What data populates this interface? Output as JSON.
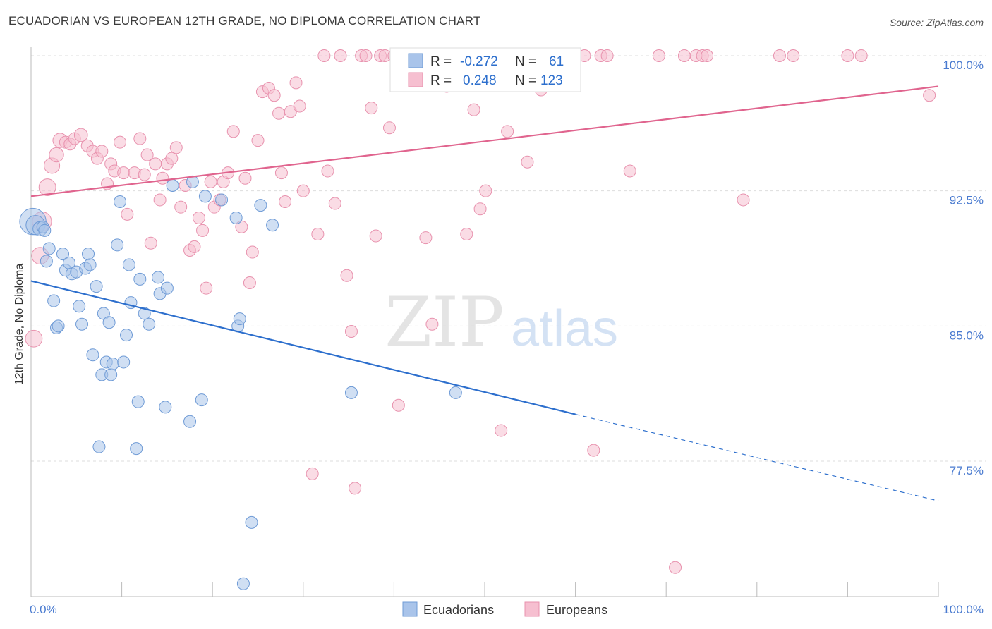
{
  "title": "ECUADORIAN VS EUROPEAN 12TH GRADE, NO DIPLOMA CORRELATION CHART",
  "source": "Source: ZipAtlas.com",
  "watermark": {
    "zip": "ZIP",
    "atlas": "atlas"
  },
  "colors": {
    "blue_fill": "#a9c4ea",
    "blue_stroke": "#6f9bd6",
    "blue_line": "#2d6fcd",
    "pink_fill": "#f6bfd0",
    "pink_stroke": "#e892ae",
    "pink_line": "#e0648e",
    "tick_text": "#4a7bd0",
    "grid": "#dddddd"
  },
  "stats_legend": [
    {
      "r_label": "R =",
      "r_value": "-0.272",
      "n_label": "N =",
      "n_value": "61"
    },
    {
      "r_label": "R =",
      "r_value": "0.248",
      "n_label": "N =",
      "n_value": "123"
    }
  ],
  "chart_data": {
    "type": "scatter",
    "xlabel": "",
    "ylabel": "12th Grade, No Diploma",
    "xlim": [
      0,
      100
    ],
    "ylim": [
      70.0,
      101.5
    ],
    "x_tick_labels": [
      "0.0%",
      "100.0%"
    ],
    "y_ticks": [
      77.5,
      85.0,
      92.5,
      100.0
    ],
    "y_tick_labels": [
      "77.5%",
      "85.0%",
      "92.5%",
      "100.0%"
    ],
    "grid": "horizontal dashed",
    "legend_position": "bottom-center",
    "series": [
      {
        "name": "Ecuadorians",
        "color": "blue",
        "trend": {
          "x0": 0,
          "y0": 87.5,
          "x1": 60,
          "y1": 80.1,
          "dashed_to_x": 100,
          "dashed_to_y": 75.3
        },
        "points": [
          [
            0.2,
            90.8,
            2.2
          ],
          [
            0.5,
            90.6,
            1.6
          ],
          [
            1.0,
            90.4,
            1.2
          ],
          [
            1.3,
            90.5,
            1
          ],
          [
            1.5,
            90.3,
            1
          ],
          [
            1.7,
            88.6,
            1
          ],
          [
            2.0,
            89.3,
            1
          ],
          [
            2.5,
            86.4,
            1
          ],
          [
            2.8,
            84.9,
            1
          ],
          [
            3.0,
            85.0,
            1
          ],
          [
            3.5,
            89.0,
            1
          ],
          [
            3.8,
            88.1,
            1
          ],
          [
            4.2,
            88.5,
            1
          ],
          [
            4.5,
            87.9,
            1
          ],
          [
            5.0,
            88.0,
            1
          ],
          [
            5.3,
            86.1,
            1
          ],
          [
            5.6,
            85.1,
            1
          ],
          [
            6.0,
            88.2,
            1
          ],
          [
            6.3,
            89.0,
            1
          ],
          [
            6.5,
            88.4,
            1
          ],
          [
            6.8,
            83.4,
            1
          ],
          [
            7.2,
            87.2,
            1
          ],
          [
            7.5,
            78.3,
            1
          ],
          [
            7.8,
            82.3,
            1
          ],
          [
            8.0,
            85.7,
            1
          ],
          [
            8.3,
            83.0,
            1
          ],
          [
            8.6,
            85.2,
            1
          ],
          [
            8.8,
            82.3,
            1
          ],
          [
            9.0,
            82.9,
            1
          ],
          [
            9.5,
            89.5,
            1
          ],
          [
            9.8,
            91.9,
            1
          ],
          [
            10.2,
            83.0,
            1
          ],
          [
            10.5,
            84.5,
            1
          ],
          [
            10.8,
            88.4,
            1
          ],
          [
            11.0,
            86.3,
            1
          ],
          [
            11.6,
            78.2,
            1
          ],
          [
            11.8,
            80.8,
            1
          ],
          [
            12.0,
            87.6,
            1
          ],
          [
            12.5,
            85.7,
            1
          ],
          [
            13.0,
            85.1,
            1
          ],
          [
            14.0,
            87.7,
            1
          ],
          [
            14.2,
            86.8,
            1
          ],
          [
            14.8,
            80.5,
            1
          ],
          [
            15.0,
            87.1,
            1
          ],
          [
            15.6,
            92.8,
            1
          ],
          [
            17.5,
            79.7,
            1
          ],
          [
            17.8,
            93.0,
            1
          ],
          [
            18.8,
            80.9,
            1
          ],
          [
            19.2,
            92.2,
            1
          ],
          [
            21.0,
            92.0,
            1
          ],
          [
            22.6,
            91.0,
            1
          ],
          [
            22.8,
            85.0,
            1
          ],
          [
            23.0,
            85.4,
            1
          ],
          [
            23.4,
            70.7,
            1
          ],
          [
            24.3,
            74.1,
            1
          ],
          [
            25.3,
            91.7,
            1
          ],
          [
            26.6,
            90.6,
            1
          ],
          [
            35.3,
            81.3,
            1
          ],
          [
            46.8,
            81.3,
            1
          ]
        ]
      },
      {
        "name": "Europeans",
        "color": "pink",
        "trend": {
          "x0": 0,
          "y0": 92.2,
          "x1": 100,
          "y1": 98.3
        },
        "points": [
          [
            0.3,
            84.3,
            1.4
          ],
          [
            1.0,
            88.9,
            1.4
          ],
          [
            1.2,
            90.8,
            1.6
          ],
          [
            1.8,
            92.7,
            1.4
          ],
          [
            2.3,
            93.9,
            1.3
          ],
          [
            2.8,
            94.5,
            1.2
          ],
          [
            3.2,
            95.3,
            1.2
          ],
          [
            3.8,
            95.2,
            1
          ],
          [
            4.3,
            95.1,
            1
          ],
          [
            4.8,
            95.4,
            1
          ],
          [
            5.5,
            95.6,
            1.1
          ],
          [
            6.2,
            95.0,
            1
          ],
          [
            6.8,
            94.7,
            1
          ],
          [
            7.3,
            94.3,
            1
          ],
          [
            7.8,
            94.7,
            1
          ],
          [
            8.4,
            92.9,
            1
          ],
          [
            8.8,
            94.0,
            1
          ],
          [
            9.2,
            93.6,
            1
          ],
          [
            9.8,
            95.2,
            1
          ],
          [
            10.2,
            93.5,
            1
          ],
          [
            10.6,
            91.2,
            1
          ],
          [
            11.4,
            93.5,
            1
          ],
          [
            12.0,
            95.4,
            1
          ],
          [
            12.5,
            93.4,
            1
          ],
          [
            12.8,
            94.5,
            1
          ],
          [
            13.2,
            89.6,
            1
          ],
          [
            13.7,
            94.0,
            1
          ],
          [
            14.2,
            92.0,
            1
          ],
          [
            14.5,
            93.2,
            1
          ],
          [
            15.0,
            94.0,
            1
          ],
          [
            15.5,
            94.3,
            1
          ],
          [
            16.0,
            94.9,
            1
          ],
          [
            16.5,
            91.6,
            1
          ],
          [
            17.0,
            92.8,
            1
          ],
          [
            17.5,
            89.2,
            1
          ],
          [
            18.0,
            89.4,
            1
          ],
          [
            18.5,
            91.0,
            1
          ],
          [
            18.9,
            90.3,
            1
          ],
          [
            19.3,
            87.1,
            1
          ],
          [
            19.8,
            93.0,
            1
          ],
          [
            20.2,
            91.6,
            1
          ],
          [
            20.8,
            92.0,
            1
          ],
          [
            21.2,
            93.0,
            1
          ],
          [
            21.7,
            93.5,
            1
          ],
          [
            22.3,
            95.8,
            1
          ],
          [
            23.2,
            90.5,
            1
          ],
          [
            23.6,
            93.2,
            1
          ],
          [
            24.1,
            87.4,
            1
          ],
          [
            24.4,
            89.1,
            1
          ],
          [
            25.0,
            95.3,
            1
          ],
          [
            25.5,
            98.0,
            1
          ],
          [
            26.2,
            98.2,
            1
          ],
          [
            26.8,
            97.8,
            1
          ],
          [
            27.3,
            96.8,
            1
          ],
          [
            27.6,
            93.5,
            1
          ],
          [
            28.0,
            91.9,
            1
          ],
          [
            28.6,
            96.9,
            1
          ],
          [
            29.2,
            98.5,
            1
          ],
          [
            29.6,
            97.2,
            1
          ],
          [
            30.0,
            92.5,
            1
          ],
          [
            31.0,
            76.8,
            1
          ],
          [
            31.6,
            90.1,
            1
          ],
          [
            32.3,
            100.0,
            1
          ],
          [
            32.7,
            93.6,
            1
          ],
          [
            33.5,
            91.8,
            1
          ],
          [
            34.1,
            100.0,
            1
          ],
          [
            34.8,
            87.8,
            1
          ],
          [
            35.3,
            84.7,
            1
          ],
          [
            35.7,
            76.0,
            1
          ],
          [
            36.4,
            100.0,
            1
          ],
          [
            36.9,
            100.0,
            1
          ],
          [
            37.5,
            97.1,
            1
          ],
          [
            38.0,
            90.0,
            1
          ],
          [
            38.5,
            100.0,
            1
          ],
          [
            39.0,
            100.0,
            1
          ],
          [
            39.5,
            96.0,
            1
          ],
          [
            40.0,
            100.0,
            1
          ],
          [
            40.5,
            80.6,
            1
          ],
          [
            41.2,
            100.0,
            1
          ],
          [
            42.0,
            100.0,
            1
          ],
          [
            42.8,
            100.0,
            1
          ],
          [
            43.5,
            89.9,
            1
          ],
          [
            44.2,
            85.1,
            1
          ],
          [
            45.0,
            100.0,
            1
          ],
          [
            45.8,
            98.3,
            1
          ],
          [
            46.5,
            100.0,
            1
          ],
          [
            47.3,
            100.0,
            1
          ],
          [
            48.0,
            90.1,
            1
          ],
          [
            48.8,
            97.0,
            1
          ],
          [
            49.5,
            91.5,
            1
          ],
          [
            50.1,
            92.5,
            1
          ],
          [
            51.0,
            100.0,
            1
          ],
          [
            51.8,
            79.2,
            1
          ],
          [
            52.5,
            95.8,
            1
          ],
          [
            53.2,
            100.0,
            1
          ],
          [
            54.0,
            100.0,
            1
          ],
          [
            54.7,
            94.1,
            1
          ],
          [
            55.5,
            100.0,
            1
          ],
          [
            56.2,
            98.1,
            1
          ],
          [
            57.0,
            100.0,
            1
          ],
          [
            57.8,
            98.7,
            1
          ],
          [
            58.5,
            100.0,
            1
          ],
          [
            59.0,
            98.9,
            1
          ],
          [
            61.0,
            100.0,
            1
          ],
          [
            62.0,
            78.1,
            1
          ],
          [
            62.8,
            100.0,
            1
          ],
          [
            63.5,
            100.0,
            1
          ],
          [
            66.0,
            93.6,
            1
          ],
          [
            69.2,
            100.0,
            1
          ],
          [
            71.0,
            71.6,
            1
          ],
          [
            72.0,
            100.0,
            1
          ],
          [
            73.3,
            100.0,
            1
          ],
          [
            74.0,
            100.0,
            1
          ],
          [
            74.5,
            100.0,
            1
          ],
          [
            78.5,
            92.0,
            1
          ],
          [
            82.5,
            100.0,
            1
          ],
          [
            84.0,
            100.0,
            1
          ],
          [
            90.0,
            100.0,
            1
          ],
          [
            91.5,
            100.0,
            1
          ],
          [
            99.0,
            97.8,
            1
          ]
        ]
      }
    ]
  }
}
